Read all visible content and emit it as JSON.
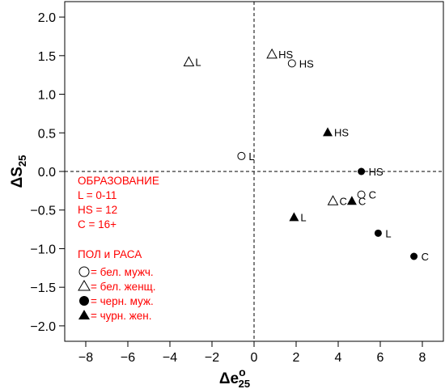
{
  "chart_data": {
    "type": "scatter",
    "x_axis": {
      "label_main": "Δe",
      "label_sup": "o",
      "label_sub": "25",
      "range": [
        -9,
        9
      ],
      "ticks": [
        -8,
        -6,
        -4,
        -2,
        0,
        2,
        4,
        6,
        8
      ]
    },
    "y_axis": {
      "label_main": "ΔS",
      "label_sub": "25",
      "range": [
        -2.2,
        2.2
      ],
      "ticks": [
        -2.0,
        -1.5,
        -1.0,
        -0.5,
        0.0,
        0.5,
        1.0,
        1.5,
        2.0
      ],
      "tick_labels": [
        "−2.0",
        "−1.5",
        "−1.0",
        "−0.5",
        "0.0",
        "0.5",
        "1.0",
        "1.5",
        "2.0"
      ]
    },
    "x_tick_labels": [
      "−8",
      "−6",
      "−4",
      "−2",
      "0",
      "2",
      "4",
      "6",
      "8"
    ],
    "reference_lines": {
      "x": 0,
      "y": 0,
      "style": "dashed"
    },
    "points": [
      {
        "x": -3.1,
        "y": 1.42,
        "marker": "triangle-open",
        "label": "L"
      },
      {
        "x": 0.85,
        "y": 1.52,
        "marker": "triangle-open",
        "label": "HS"
      },
      {
        "x": 1.8,
        "y": 1.4,
        "marker": "circle-open",
        "label": "HS"
      },
      {
        "x": -0.6,
        "y": 0.2,
        "marker": "circle-open",
        "label": "L"
      },
      {
        "x": 3.5,
        "y": 0.51,
        "marker": "triangle-filled",
        "label": "HS"
      },
      {
        "x": 5.1,
        "y": 0.0,
        "marker": "circle-filled",
        "label": "HS"
      },
      {
        "x": 5.1,
        "y": -0.3,
        "marker": "circle-open",
        "label": "C"
      },
      {
        "x": 3.75,
        "y": -0.38,
        "marker": "triangle-open",
        "label": "C"
      },
      {
        "x": 4.65,
        "y": -0.38,
        "marker": "triangle-filled",
        "label": "C"
      },
      {
        "x": 1.9,
        "y": -0.59,
        "marker": "triangle-filled",
        "label": "L"
      },
      {
        "x": 5.9,
        "y": -0.8,
        "marker": "circle-filled",
        "label": "L"
      },
      {
        "x": 7.6,
        "y": -1.1,
        "marker": "circle-filled",
        "label": "C"
      }
    ],
    "legend": {
      "position": "left-lower",
      "education_title": "ОБРАЗОВАНИЕ",
      "education_items": [
        "L = 0-11",
        "HS = 12",
        "C = 16+"
      ],
      "group_title": "ПОЛ и РАСА",
      "group_items": [
        {
          "marker": "circle-open",
          "text": " = бел. мужч."
        },
        {
          "marker": "triangle-open",
          "text": " = бел. женщ."
        },
        {
          "marker": "circle-filled",
          "text": " = черн. муж."
        },
        {
          "marker": "triangle-filled",
          "text": " = чурн. жен."
        }
      ]
    },
    "colors": {
      "legend_text": "#ff0000",
      "markers": "#000000"
    }
  }
}
